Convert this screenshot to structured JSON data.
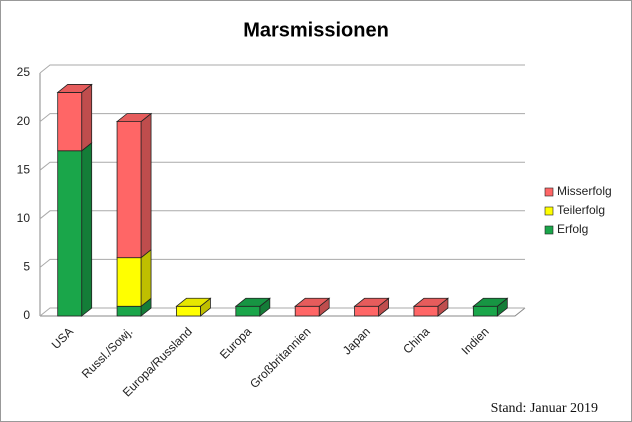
{
  "chart_data": {
    "type": "bar3d_stacked",
    "title": "Marsmissionen",
    "categories": [
      "USA",
      "Russl./Sowj.",
      "Europa/Russland",
      "Europa",
      "Großbritannien",
      "Japan",
      "China",
      "Indien"
    ],
    "series": [
      {
        "name": "Erfolg",
        "color": "#1aa64a",
        "values": [
          17,
          1,
          0,
          1,
          0,
          0,
          0,
          1
        ]
      },
      {
        "name": "Teilerfolg",
        "color": "#ffff00",
        "values": [
          0,
          5,
          1,
          0,
          0,
          0,
          0,
          0
        ]
      },
      {
        "name": "Misserfolg",
        "color": "#ff6666",
        "values": [
          6,
          14,
          0,
          0,
          1,
          1,
          1,
          0
        ]
      }
    ],
    "ylim": [
      0,
      25
    ],
    "yticks": [
      0,
      5,
      10,
      15,
      20,
      25
    ],
    "grid": true,
    "legend": "right",
    "note": "Stand: Januar 2019"
  }
}
